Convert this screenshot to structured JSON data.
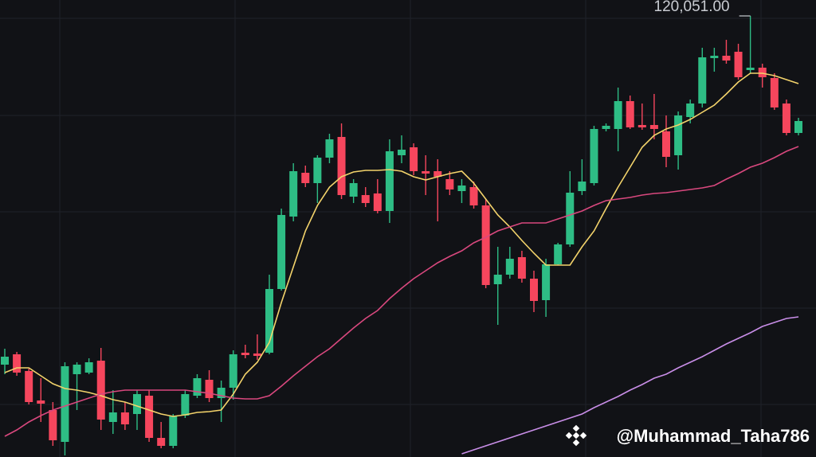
{
  "chart_data": {
    "type": "candlestick",
    "up_color": "#2ebd85",
    "down_color": "#f6465d",
    "ylim": [
      108971,
      120451
    ],
    "open": [
      111291,
      111551,
      111131,
      110391,
      110151,
      109351,
      111051,
      111091,
      111391,
      109851,
      110091,
      110051,
      110511,
      109451,
      109251,
      110011,
      110511,
      110911,
      110451,
      110711,
      111591,
      111571,
      111591,
      113191,
      115011,
      116111,
      115851,
      116491,
      117011,
      115511,
      115551,
      115591,
      115151,
      116551,
      116751,
      116151,
      116151,
      115951,
      115651,
      115751,
      115291,
      113311,
      113551,
      113991,
      113451,
      112911,
      113811,
      114311,
      115651,
      115851,
      117211,
      117211,
      117911,
      117311,
      117311,
      117151,
      116551,
      117511,
      117851,
      118991,
      119051,
      119151,
      118691,
      118751,
      118491,
      117851,
      117111
    ],
    "high": [
      111691,
      111611,
      111191,
      110951,
      110351,
      111351,
      111351,
      111451,
      111711,
      110651,
      110351,
      110651,
      110651,
      109851,
      110051,
      110651,
      111051,
      111151,
      110891,
      111651,
      111791,
      112051,
      113551,
      115211,
      116351,
      116291,
      116551,
      117091,
      117351,
      115951,
      115751,
      115951,
      116951,
      117051,
      116851,
      116551,
      116451,
      116151,
      115951,
      115891,
      115451,
      114251,
      114251,
      114151,
      113651,
      113951,
      114351,
      116151,
      116451,
      117291,
      117351,
      118251,
      118051,
      117851,
      118091,
      117551,
      117651,
      117951,
      119251,
      119251,
      119451,
      119351,
      120051,
      118851,
      118611,
      117951,
      117491
    ],
    "low": [
      111051,
      111011,
      110291,
      109851,
      109251,
      109011,
      110151,
      111051,
      109651,
      109551,
      109651,
      109651,
      109351,
      109191,
      109191,
      109951,
      110451,
      110351,
      109851,
      110411,
      111451,
      111411,
      111551,
      113151,
      114891,
      115751,
      115351,
      116351,
      115451,
      115351,
      115251,
      115091,
      114851,
      116351,
      116051,
      115551,
      114891,
      115551,
      115351,
      115211,
      113211,
      112291,
      113451,
      113351,
      112611,
      112491,
      113791,
      114251,
      115551,
      115791,
      117151,
      116651,
      117211,
      117191,
      116951,
      116251,
      116191,
      117351,
      117751,
      118651,
      118851,
      118451,
      118611,
      118251,
      117691,
      117051,
      117051
    ],
    "close": [
      111491,
      111091,
      110351,
      110311,
      109391,
      111251,
      111291,
      111351,
      109911,
      110091,
      109791,
      110551,
      109451,
      109251,
      110011,
      110551,
      110951,
      110451,
      110711,
      111551,
      111531,
      111511,
      113191,
      115051,
      116151,
      115851,
      116491,
      116951,
      115551,
      115851,
      115351,
      115151,
      116651,
      116691,
      116151,
      116091,
      116011,
      115691,
      115791,
      115291,
      113291,
      113551,
      113951,
      113451,
      112891,
      113811,
      114311,
      115611,
      115891,
      117211,
      117291,
      117911,
      117251,
      117251,
      117211,
      116511,
      117551,
      117851,
      119011,
      119051,
      118931,
      118511,
      118751,
      118511,
      117751,
      117111,
      117411
    ],
    "series": [
      {
        "color": "#f3d36b",
        "values": [
          111091,
          111211,
          111211,
          111011,
          110811,
          110691,
          110651,
          110591,
          110511,
          110411,
          110351,
          110251,
          110151,
          110051,
          109991,
          110031,
          110091,
          110111,
          110151,
          110551,
          111051,
          111351,
          111851,
          112851,
          113751,
          114651,
          115291,
          115751,
          116011,
          116131,
          116171,
          116171,
          116191,
          116151,
          116011,
          115931,
          116011,
          116091,
          116151,
          115851,
          115451,
          115051,
          114751,
          114411,
          114091,
          113791,
          113791,
          113791,
          114251,
          114651,
          115211,
          115751,
          116251,
          116751,
          117051,
          117211,
          117311,
          117451,
          117631,
          117811,
          118091,
          118391,
          118611,
          118611,
          118551,
          118451,
          118351
        ]
      },
      {
        "color": "#d9487e",
        "values": [
          109491,
          109651,
          109851,
          110011,
          110151,
          110251,
          110351,
          110451,
          110551,
          110611,
          110651,
          110651,
          110651,
          110651,
          110651,
          110651,
          110611,
          110571,
          110511,
          110451,
          110431,
          110431,
          110511,
          110751,
          111011,
          111251,
          111491,
          111691,
          111951,
          112211,
          112451,
          112651,
          112951,
          113211,
          113451,
          113651,
          113851,
          114011,
          114151,
          114351,
          114491,
          114651,
          114751,
          114851,
          114851,
          114851,
          114951,
          115051,
          115151,
          115291,
          115411,
          115451,
          115491,
          115551,
          115591,
          115611,
          115651,
          115691,
          115731,
          115791,
          115951,
          116091,
          116251,
          116351,
          116491,
          116651,
          116771
        ]
      },
      {
        "color": "#c98ee8",
        "values": [
          null,
          null,
          null,
          null,
          null,
          null,
          null,
          null,
          null,
          null,
          null,
          null,
          null,
          null,
          null,
          null,
          null,
          null,
          null,
          null,
          null,
          null,
          null,
          null,
          null,
          null,
          null,
          null,
          null,
          null,
          null,
          null,
          null,
          null,
          null,
          null,
          null,
          null,
          109051,
          109151,
          109251,
          109351,
          109451,
          109551,
          109651,
          109751,
          109851,
          109951,
          110051,
          110211,
          110351,
          110491,
          110651,
          110791,
          110951,
          111051,
          111211,
          111351,
          111491,
          111651,
          111811,
          111951,
          112091,
          112251,
          112351,
          112451,
          112491
        ]
      }
    ],
    "annotation": {
      "label": "120,051.00",
      "value": 120051
    }
  },
  "watermark": "@Muhammad_Taha786"
}
